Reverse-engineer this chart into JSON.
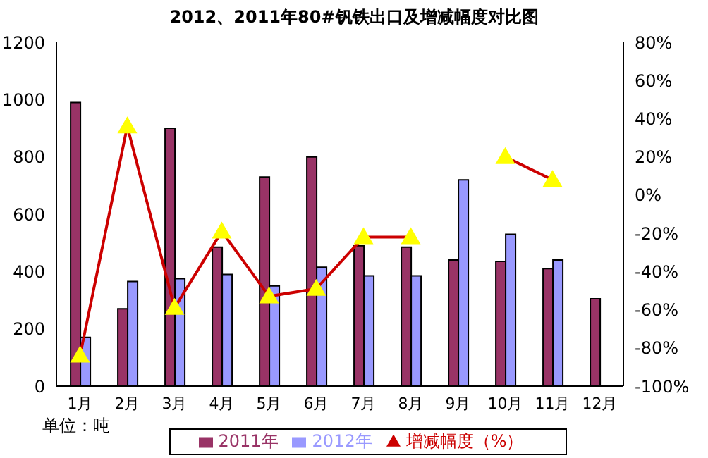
{
  "chart_data": {
    "type": "bar",
    "title": "2012、2011年80#钒铁出口及增减幅度对比图",
    "categories": [
      "1月",
      "2月",
      "3月",
      "4月",
      "5月",
      "6月",
      "7月",
      "8月",
      "9月",
      "10月",
      "11月",
      "12月"
    ],
    "series": [
      {
        "name": "2011年",
        "color": "#993366",
        "values": [
          990,
          270,
          900,
          485,
          730,
          800,
          490,
          485,
          440,
          435,
          410,
          305
        ]
      },
      {
        "name": "2012年",
        "color": "#9999ff",
        "values": [
          170,
          365,
          375,
          390,
          350,
          415,
          385,
          385,
          720,
          530,
          440,
          null
        ]
      },
      {
        "name": "增减幅度（%）",
        "type": "line",
        "axis": "y2",
        "color": "#cc0000",
        "marker": "triangle",
        "values": [
          -84,
          36,
          -59,
          -19,
          -53,
          -49,
          -22,
          -22,
          null,
          20,
          8,
          null
        ]
      }
    ],
    "ylim": [
      0,
      1200
    ],
    "yticks": [
      0,
      200,
      400,
      600,
      800,
      1000,
      1200
    ],
    "y2lim": [
      -100,
      80
    ],
    "y2ticks": [
      {
        "value": -100,
        "label": "-100%"
      },
      {
        "value": -80,
        "label": "-80%"
      },
      {
        "value": -60,
        "label": "-60%"
      },
      {
        "value": -40,
        "label": "-40%"
      },
      {
        "value": -20,
        "label": "-20%"
      },
      {
        "value": 0,
        "label": "0%"
      },
      {
        "value": 20,
        "label": "20%"
      },
      {
        "value": 40,
        "label": "40%"
      },
      {
        "value": 60,
        "label": "60%"
      },
      {
        "value": 80,
        "label": "80%"
      }
    ],
    "annotations": [
      "单位：吨"
    ],
    "grid": false,
    "legend": "bottom"
  }
}
